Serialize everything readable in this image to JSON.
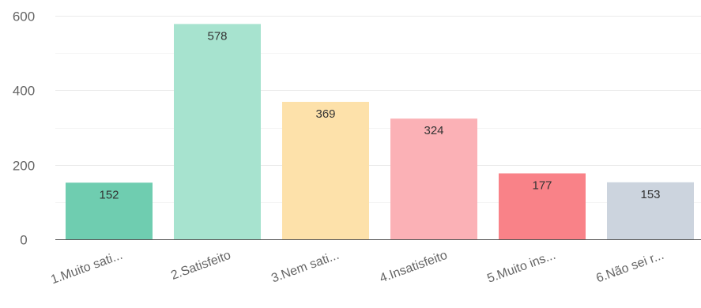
{
  "chart_data": {
    "type": "bar",
    "categories": [
      "1.Muito sati...",
      "2.Satisfeito",
      "3.Nem sati...",
      "4.Insatisfeito",
      "5.Muito ins...",
      "6.Não sei r..."
    ],
    "values": [
      152,
      578,
      369,
      324,
      177,
      153
    ],
    "colors": [
      "#6fcdb0",
      "#a7e3cf",
      "#fde1aa",
      "#fbb1b6",
      "#f98288",
      "#ccd4de"
    ],
    "yticks": [
      0,
      200,
      400,
      600
    ],
    "ylim": [
      0,
      600
    ],
    "grid": true,
    "legend": "none"
  }
}
